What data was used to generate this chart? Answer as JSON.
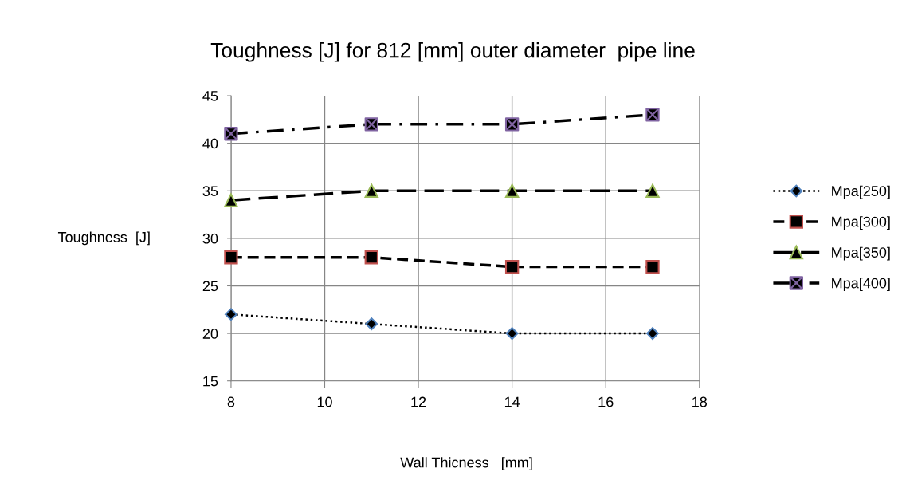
{
  "chart_data": {
    "type": "line",
    "title": "Toughness [J] for 812 [mm] outer diameter  pipe line",
    "xlabel": "Wall Thicness   [mm]",
    "ylabel": "Toughness  [J]",
    "x": [
      8,
      11,
      14,
      17
    ],
    "series": [
      {
        "name": "Mpa[250]",
        "color": "#4f81bd",
        "values": [
          22,
          21,
          20,
          20
        ],
        "marker": "diamond",
        "line_style": "dotted"
      },
      {
        "name": "Mpa[300]",
        "color": "#c0504d",
        "values": [
          28,
          28,
          27,
          27
        ],
        "marker": "square",
        "line_style": "dashed"
      },
      {
        "name": "Mpa[350]",
        "color": "#9bbb59",
        "values": [
          34,
          35,
          35,
          35
        ],
        "marker": "triangle",
        "line_style": "longdash"
      },
      {
        "name": "Mpa[400]",
        "color": "#8064a2",
        "values": [
          41,
          42,
          42,
          43
        ],
        "marker": "cross",
        "line_style": "dashdot"
      }
    ],
    "xlim": [
      8,
      18
    ],
    "xticks": [
      8,
      10,
      12,
      14,
      16,
      18
    ],
    "ylim": [
      15,
      45
    ],
    "yticks": [
      15,
      20,
      25,
      30,
      35,
      40,
      45
    ],
    "grid": true,
    "legend": "right"
  }
}
